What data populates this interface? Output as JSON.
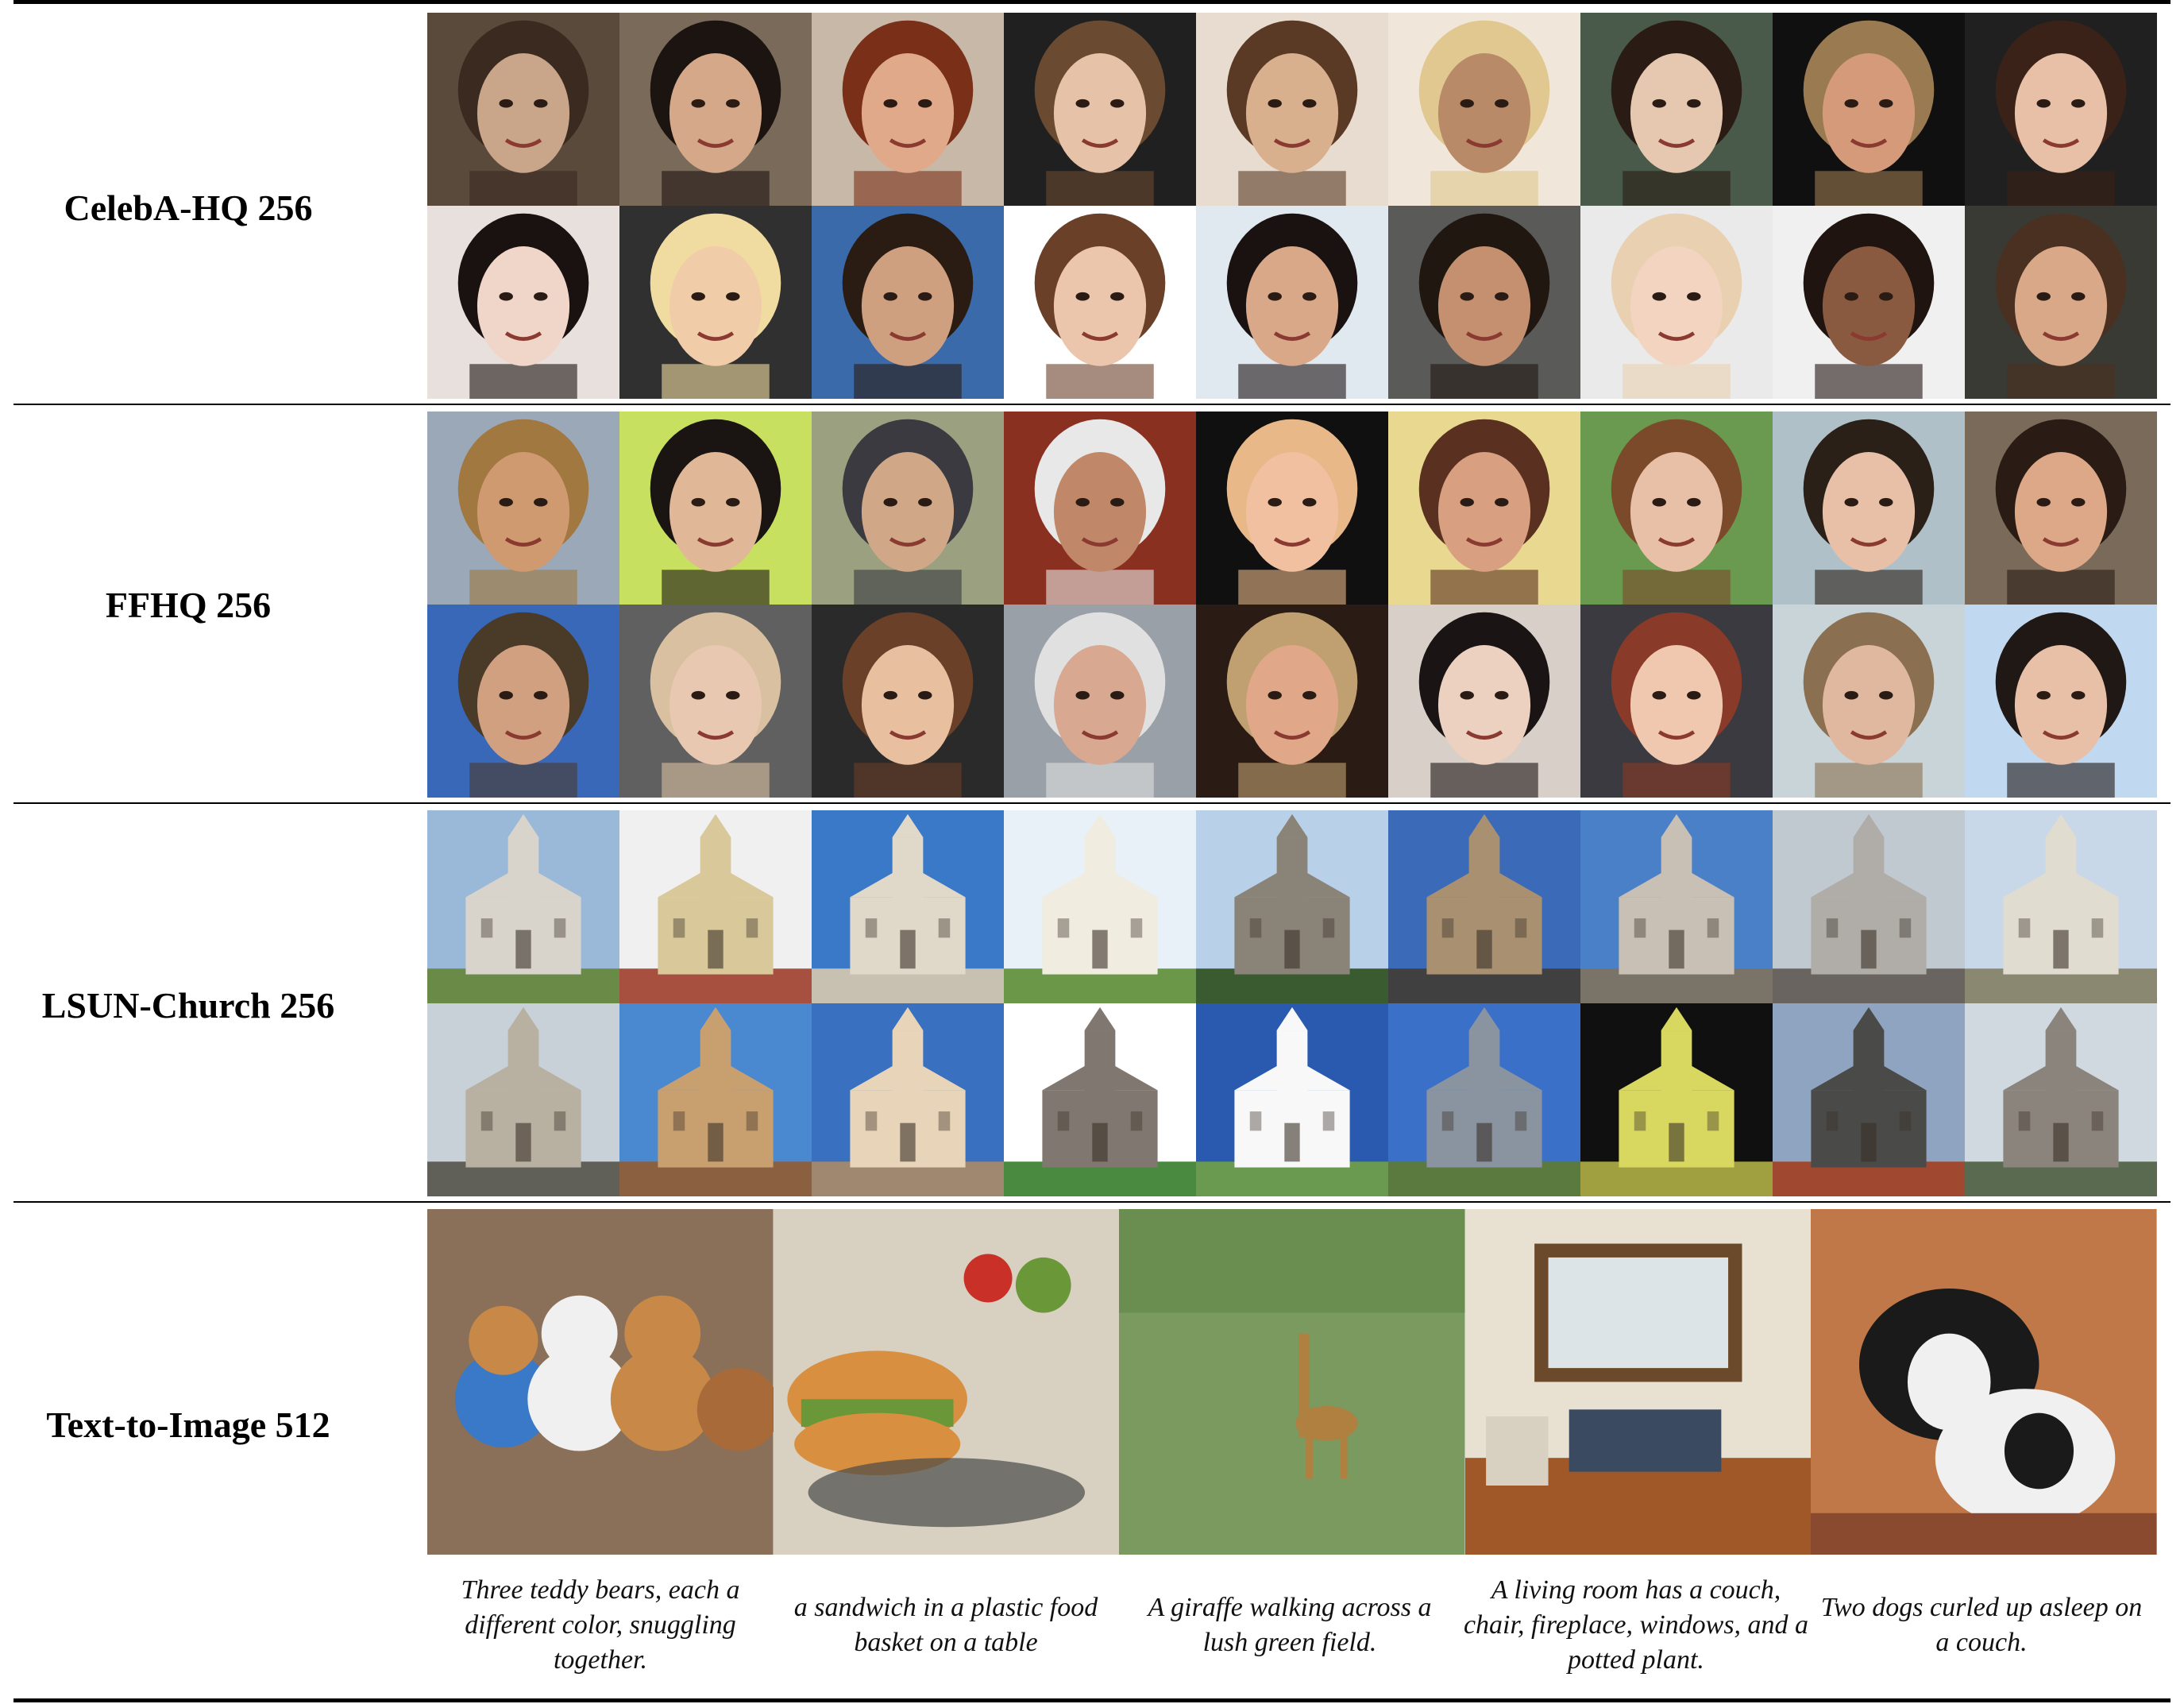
{
  "rows": [
    {
      "label": "CelebA-HQ 256",
      "kind": "face",
      "palette": [
        [
          "#c9a58a",
          "#3a2a20",
          "#5a4a3c"
        ],
        [
          "#d4a888",
          "#1c1410",
          "#7a6a5a"
        ],
        [
          "#e0a98a",
          "#7a3018",
          "#c8b8a8"
        ],
        [
          "#e6c2a8",
          "#6a4a30",
          "#202020"
        ],
        [
          "#d9b08e",
          "#5a3a24",
          "#e8dcd0"
        ],
        [
          "#b88a68",
          "#e0c890",
          "#f0e6da"
        ],
        [
          "#e6c8b0",
          "#2a1c14",
          "#4a5a4a"
        ],
        [
          "#d49a7a",
          "#9a7a50",
          "#101010"
        ],
        [
          "#e8c0a8",
          "#3a2218",
          "#202020"
        ],
        [
          "#f0d6c8",
          "#1a1210",
          "#e8e0dc"
        ],
        [
          "#f0cca8",
          "#f0dca0",
          "#303030"
        ],
        [
          "#cfa080",
          "#2a1c12",
          "#3a6aaa"
        ],
        [
          "#ecc6ac",
          "#6a4028",
          "#ffffff"
        ],
        [
          "#d8a888",
          "#1a1210",
          "#e0e8f0"
        ],
        [
          "#c49070",
          "#201810",
          "#5a5a58"
        ],
        [
          "#f2d4c0",
          "#e8d0b0",
          "#eaeaea"
        ],
        [
          "#8a5a40",
          "#201410",
          "#f0f0f0"
        ],
        [
          "#d8a888",
          "#4a3020",
          "#3a3a34"
        ]
      ]
    },
    {
      "label": "FFHQ 256",
      "kind": "face",
      "palette": [
        [
          "#d09a70",
          "#a07840",
          "#9aa8b8"
        ],
        [
          "#e0b898",
          "#1a1412",
          "#c8e060"
        ],
        [
          "#d0a888",
          "#3a3a40",
          "#9aa080"
        ],
        [
          "#c08868",
          "#e8e8e8",
          "#8a3020"
        ],
        [
          "#f0c0a0",
          "#e8b888",
          "#101010"
        ],
        [
          "#d8a080",
          "#5a3020",
          "#e8d890"
        ],
        [
          "#e8c0a8",
          "#7a4a2a",
          "#6a9a50"
        ],
        [
          "#e8c0a8",
          "#2a2018",
          "#b0c0c8"
        ],
        [
          "#dca888",
          "#2a1c14",
          "#7a6a5a"
        ],
        [
          "#d0a080",
          "#4a3a28",
          "#3a68b8"
        ],
        [
          "#e8c8b0",
          "#d8c0a0",
          "#606060"
        ],
        [
          "#e8c0a0",
          "#6a4028",
          "#2a2a2a"
        ],
        [
          "#d8a890",
          "#e0e0e0",
          "#9aa0a8"
        ],
        [
          "#e0a888",
          "#c0a070",
          "#2a1c14"
        ],
        [
          "#ecd0c0",
          "#1a1414",
          "#d8d0c8"
        ],
        [
          "#f0c8b0",
          "#8a3a28",
          "#3a3a40"
        ],
        [
          "#e0b8a0",
          "#8a7050",
          "#c8d4d8"
        ],
        [
          "#e8c0a8",
          "#201814",
          "#c0d8f0"
        ]
      ]
    },
    {
      "label": "LSUN-Church 256",
      "kind": "church",
      "palette": [
        [
          "#9ab8d8",
          "#d8d4cc",
          "#6a8a48"
        ],
        [
          "#f0f0f0",
          "#d8c89a",
          "#a85040"
        ],
        [
          "#3a78c8",
          "#e0d8c8",
          "#c8c0b0"
        ],
        [
          "#e8f0f8",
          "#f0ece0",
          "#6a9848"
        ],
        [
          "#b8d0e8",
          "#8a8478",
          "#3a5a30"
        ],
        [
          "#3a6ab8",
          "#a89070",
          "#404040"
        ],
        [
          "#4a80c8",
          "#c8c0b4",
          "#7a7468"
        ],
        [
          "#c0c8d0",
          "#b0aca8",
          "#6a6460"
        ],
        [
          "#c8d8e8",
          "#e0dcd0",
          "#8a8870"
        ],
        [
          "#c8d0d8",
          "#b8b0a0",
          "#606058"
        ],
        [
          "#4a88d0",
          "#c8a070",
          "#8a6040"
        ],
        [
          "#3a70c0",
          "#e8d4b8",
          "#a08870"
        ],
        [
          "#ffffff",
          "#807870",
          "#4a8a40"
        ],
        [
          "#2a5ab0",
          "#f8f8f8",
          "#6a9a50"
        ],
        [
          "#3a70c8",
          "#8a94a0",
          "#5a7a40"
        ],
        [
          "#101010",
          "#d8d860",
          "#a0a040"
        ],
        [
          "#8ea4c0",
          "#4a4a48",
          "#a04830"
        ],
        [
          "#d0d8e0",
          "#8a847c",
          "#5a6a50"
        ]
      ]
    },
    {
      "label": "Text-to-Image 512",
      "kind": "t2i",
      "palette": [
        [
          "#8a7058",
          "#f0f0f0",
          "#c88848"
        ],
        [
          "#d8d0c0",
          "#d89040",
          "#6a9838"
        ],
        [
          "#7a9a60",
          "#5a8040",
          "#b08040"
        ],
        [
          "#e8e0d0",
          "#6a4a2a",
          "#3a4a60"
        ],
        [
          "#c07848",
          "#1a1a1a",
          "#f0f0f0"
        ]
      ]
    }
  ],
  "captions": [
    "Three teddy bears, each a different color, snuggling together.",
    "a sandwich in a plastic food basket on a table",
    "A giraffe walking across a lush green field.",
    "A living room has a couch, chair, fireplace, windows, and a potted plant.",
    "Two dogs curled up asleep on a couch."
  ]
}
